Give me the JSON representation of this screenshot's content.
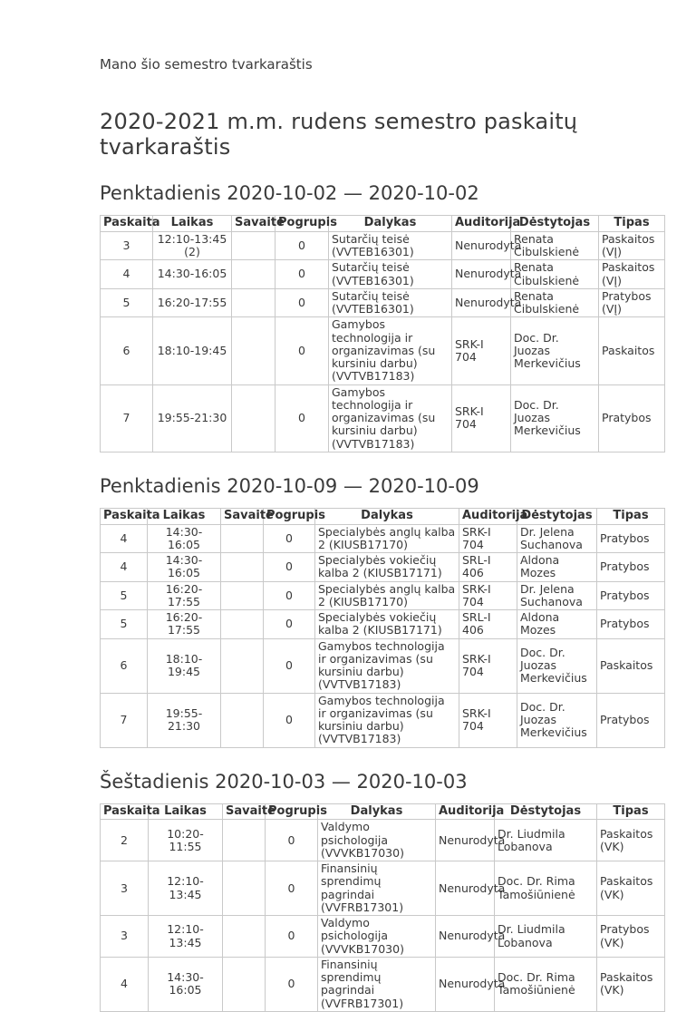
{
  "page": {
    "top_label": "Mano šio semestro tvarkaraštis",
    "title": "2020-2021 m.m. rudens semestro paskaitų tvarkaraštis"
  },
  "columns": [
    "Paskaita",
    "Laikas",
    "Savaitė",
    "Pogrupis",
    "Dalykas",
    "Auditorija",
    "Dėstytojas",
    "Tipas"
  ],
  "sections": [
    {
      "heading": "Penktadienis 2020-10-02 — 2020-10-02",
      "rows": [
        [
          "3",
          "12:10-13:45 (2)",
          "",
          "0",
          "Sutarčių teisė (VVTEB16301)",
          "Nenurodyta",
          "Renata Cibulskienė",
          "Paskaitos (VĮ)"
        ],
        [
          "4",
          "14:30-16:05",
          "",
          "0",
          "Sutarčių teisė (VVTEB16301)",
          "Nenurodyta",
          "Renata Cibulskienė",
          "Paskaitos (VĮ)"
        ],
        [
          "5",
          "16:20-17:55",
          "",
          "0",
          "Sutarčių teisė (VVTEB16301)",
          "Nenurodyta",
          "Renata Cibulskienė",
          "Pratybos (VĮ)"
        ],
        [
          "6",
          "18:10-19:45",
          "",
          "0",
          "Gamybos technologija ir organizavimas (su kursiniu darbu) (VVTVB17183)",
          "SRK-I 704",
          "Doc. Dr. Juozas Merkevičius",
          "Paskaitos"
        ],
        [
          "7",
          "19:55-21:30",
          "",
          "0",
          "Gamybos technologija ir organizavimas (su kursiniu darbu) (VVTVB17183)",
          "SRK-I 704",
          "Doc. Dr. Juozas Merkevičius",
          "Pratybos"
        ]
      ]
    },
    {
      "heading": "Penktadienis 2020-10-09 — 2020-10-09",
      "rows": [
        [
          "4",
          "14:30-16:05",
          "",
          "0",
          "Specialybės anglų kalba 2 (KIUSB17170)",
          "SRK-I 704",
          "Dr. Jelena Suchanova",
          "Pratybos"
        ],
        [
          "4",
          "14:30-16:05",
          "",
          "0",
          "Specialybės vokiečių kalba 2 (KIUSB17171)",
          "SRL-I 406",
          "Aldona Mozes",
          "Pratybos"
        ],
        [
          "5",
          "16:20-17:55",
          "",
          "0",
          "Specialybės anglų kalba 2 (KIUSB17170)",
          "SRK-I 704",
          "Dr. Jelena Suchanova",
          "Pratybos"
        ],
        [
          "5",
          "16:20-17:55",
          "",
          "0",
          "Specialybės vokiečių kalba 2 (KIUSB17171)",
          "SRL-I 406",
          "Aldona Mozes",
          "Pratybos"
        ],
        [
          "6",
          "18:10-19:45",
          "",
          "0",
          "Gamybos technologija ir organizavimas (su kursiniu darbu) (VVTVB17183)",
          "SRK-I 704",
          "Doc. Dr. Juozas Merkevičius",
          "Paskaitos"
        ],
        [
          "7",
          "19:55-21:30",
          "",
          "0",
          "Gamybos technologija ir organizavimas (su kursiniu darbu) (VVTVB17183)",
          "SRK-I 704",
          "Doc. Dr. Juozas Merkevičius",
          "Pratybos"
        ]
      ]
    },
    {
      "heading": "Šeštadienis 2020-10-03 — 2020-10-03",
      "rows": [
        [
          "2",
          "10:20-11:55",
          "",
          "0",
          "Valdymo psichologija (VVVKB17030)",
          "Nenurodyta",
          "Dr. Liudmila Lobanova",
          "Paskaitos (VK)"
        ],
        [
          "3",
          "12:10-13:45",
          "",
          "0",
          "Finansinių sprendimų pagrindai (VVFRB17301)",
          "Nenurodyta",
          "Doc. Dr. Rima Tamošiūnienė",
          "Paskaitos (VK)"
        ],
        [
          "3",
          "12:10-13:45",
          "",
          "0",
          "Valdymo psichologija (VVVKB17030)",
          "Nenurodyta",
          "Dr. Liudmila Lobanova",
          "Pratybos (VK)"
        ],
        [
          "4",
          "14:30-16:05",
          "",
          "0",
          "Finansinių sprendimų pagrindai (VVFRB17301)",
          "Nenurodyta",
          "Doc. Dr. Rima Tamošiūnienė",
          "Paskaitos (VK)"
        ]
      ]
    }
  ]
}
